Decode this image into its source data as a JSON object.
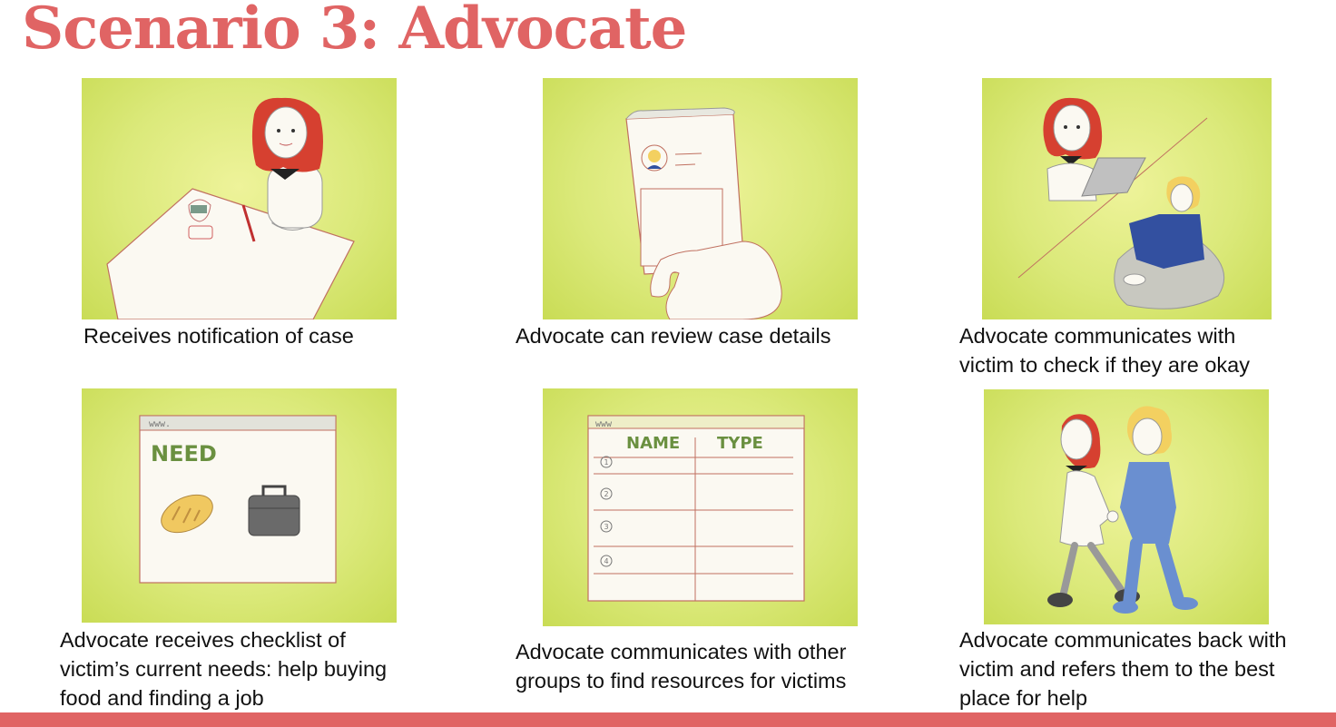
{
  "title": "Scenario 3: Advocate",
  "accent_color": "#e06464",
  "panel_color": "#d8e878",
  "panels": [
    {
      "caption": "Receives notification of case",
      "illustration": "woman-at-table-with-phone-notification"
    },
    {
      "caption": "Advocate can review case details",
      "illustration": "hand-holding-phone-with-profile"
    },
    {
      "caption": "Advocate communicates with\nvictim to check if they are okay",
      "illustration": "advocate-with-laptop-and-victim-on-beanbag"
    },
    {
      "caption": "Advocate receives checklist of\nvictim’s current needs: help buying\nfood and finding a job",
      "illustration": "browser-window-need-bread-briefcase",
      "browser_url": "www.",
      "heading": "NEED"
    },
    {
      "caption": "Advocate communicates with other\ngroups to find resources for victims",
      "illustration": "browser-window-name-type-table",
      "browser_url": "www",
      "columns": [
        "NAME",
        "TYPE"
      ],
      "row_numbers": [
        "1",
        "2",
        "3",
        "4"
      ]
    },
    {
      "caption": "Advocate communicates back with\nvictim and refers them to the best\nplace for help",
      "illustration": "advocate-and-victim-walking-hand-in-hand"
    }
  ]
}
